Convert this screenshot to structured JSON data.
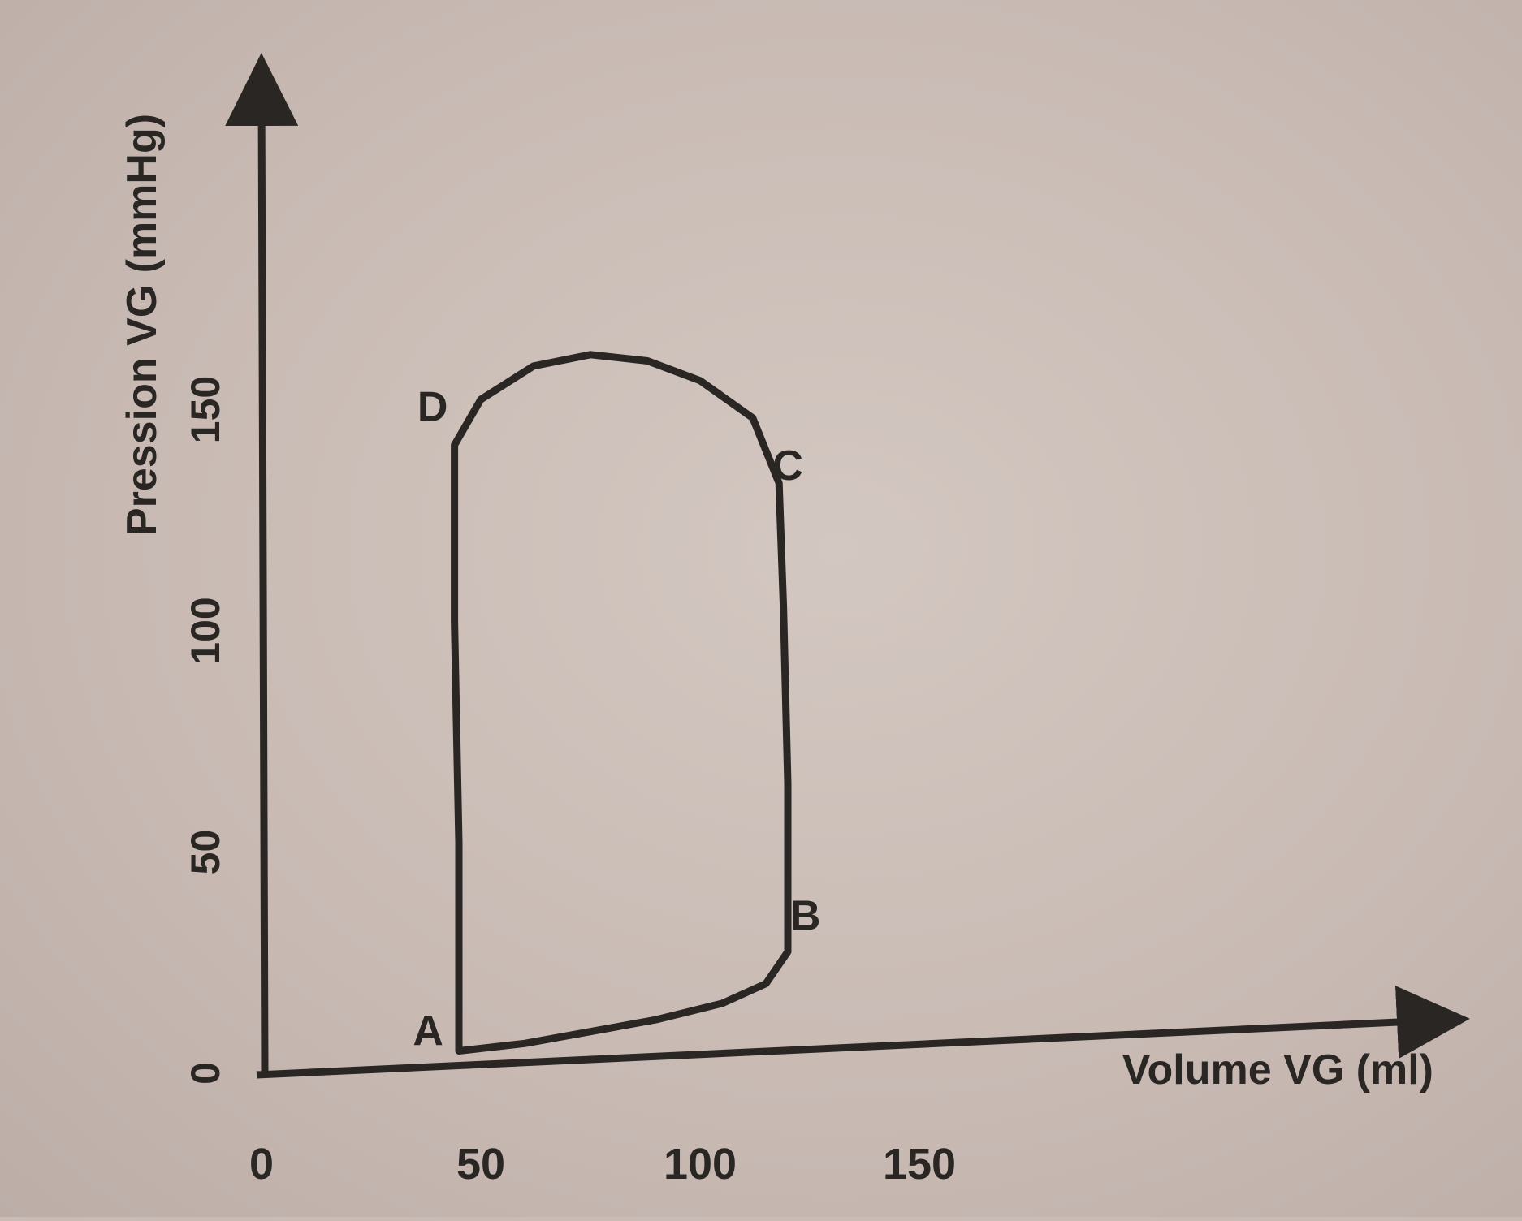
{
  "chart_data": {
    "type": "line",
    "title": "",
    "xlabel": "Volume VG (ml)",
    "ylabel": "Pression VG (mmHg)",
    "xlim": [
      0,
      220
    ],
    "ylim": [
      0,
      190
    ],
    "x_ticks": [
      "0",
      "50",
      "100",
      "150"
    ],
    "x_tick_values": [
      0,
      50,
      100,
      150
    ],
    "y_ticks": [
      "0",
      "50",
      "100",
      "150"
    ],
    "y_tick_values": [
      0,
      50,
      100,
      150
    ],
    "grid": false,
    "series": [
      {
        "values": [
          {
            "x": 45,
            "y": 3
          },
          {
            "x": 60,
            "y": 4
          },
          {
            "x": 75,
            "y": 6
          },
          {
            "x": 90,
            "y": 8
          },
          {
            "x": 105,
            "y": 11
          },
          {
            "x": 115,
            "y": 15
          },
          {
            "x": 120,
            "y": 22
          },
          {
            "x": 120,
            "y": 30
          },
          {
            "x": 120,
            "y": 60
          },
          {
            "x": 119,
            "y": 100
          },
          {
            "x": 118,
            "y": 128
          },
          {
            "x": 112,
            "y": 143
          },
          {
            "x": 100,
            "y": 152
          },
          {
            "x": 88,
            "y": 157
          },
          {
            "x": 75,
            "y": 159
          },
          {
            "x": 62,
            "y": 157
          },
          {
            "x": 50,
            "y": 150
          },
          {
            "x": 44,
            "y": 140
          },
          {
            "x": 44,
            "y": 100
          },
          {
            "x": 45,
            "y": 50
          },
          {
            "x": 45,
            "y": 3
          }
        ]
      }
    ],
    "point_labels": [
      {
        "label": "A",
        "x": 38,
        "y": 8
      },
      {
        "label": "B",
        "x": 124,
        "y": 30
      },
      {
        "label": "C",
        "x": 120,
        "y": 132
      },
      {
        "label": "D",
        "x": 39,
        "y": 149
      }
    ]
  }
}
